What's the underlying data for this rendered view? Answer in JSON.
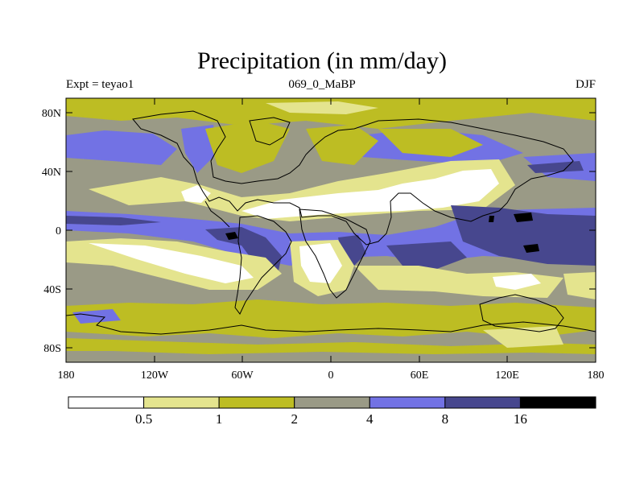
{
  "title": "Precipitation (in mm/day)",
  "left_string": "Expt = teyao1",
  "center_string": "069_0_MaBP",
  "right_string": "DJF",
  "lat_labels": [
    "80N",
    "40N",
    "0",
    "40S",
    "80S"
  ],
  "lon_labels": [
    "180",
    "120W",
    "60W",
    "0",
    "60E",
    "120E",
    "180"
  ],
  "colorbar": {
    "levels": [
      "0.5",
      "1",
      "2",
      "4",
      "8",
      "16"
    ],
    "colors": [
      "#ffffff",
      "#e4e48e",
      "#bdbd23",
      "#9a9a86",
      "#7272e4",
      "#47478e",
      "#000000"
    ]
  },
  "map_colors": {
    "ocean_base": "#9a9a86",
    "very_wet": "#47478e",
    "wet": "#7272e4",
    "moderate": "#bdbd23",
    "light": "#e4e48e",
    "dry": "#ffffff",
    "extreme": "#000000"
  }
}
